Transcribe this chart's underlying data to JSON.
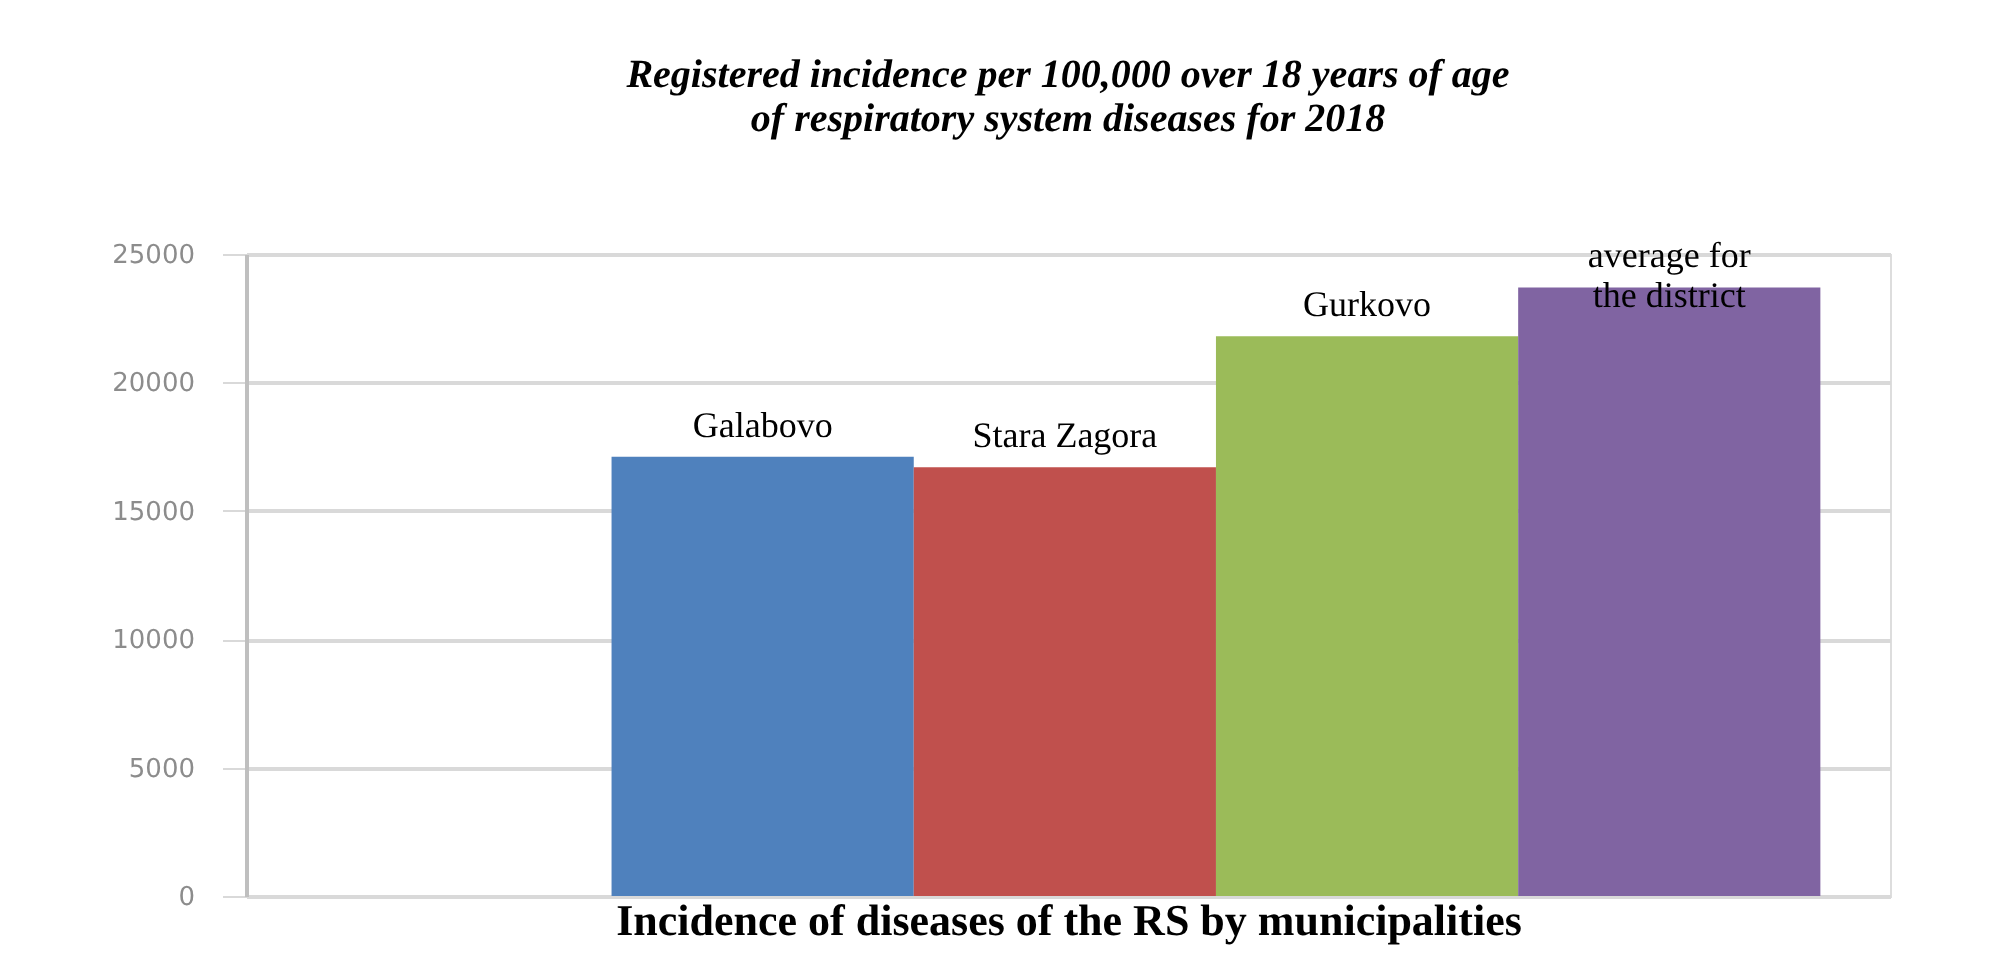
{
  "chart_data": {
    "type": "bar",
    "title": [
      "Registered incidence per 100,000 over 18 years of age",
      "of respiratory system diseases for 2018"
    ],
    "xlabel": "Incidence of diseases of the RS by municipalities",
    "categories": [
      null
    ],
    "series": [
      {
        "name": "Galabovo",
        "color": "#4f81bd",
        "values": [
          17100
        ]
      },
      {
        "name": "Stara Zagora",
        "color": "#c0504d",
        "values": [
          16700
        ]
      },
      {
        "name": "Gurkovo",
        "color": "#9bbb59",
        "values": [
          21800
        ]
      },
      {
        "name": "average for\nthe district",
        "color": "#8064a2",
        "values": [
          23700
        ]
      }
    ],
    "ylim": [
      0,
      25000
    ],
    "yticks": [
      0,
      5000,
      10000,
      15000,
      20000,
      25000
    ],
    "grid": "y",
    "tick_labels": "y"
  }
}
